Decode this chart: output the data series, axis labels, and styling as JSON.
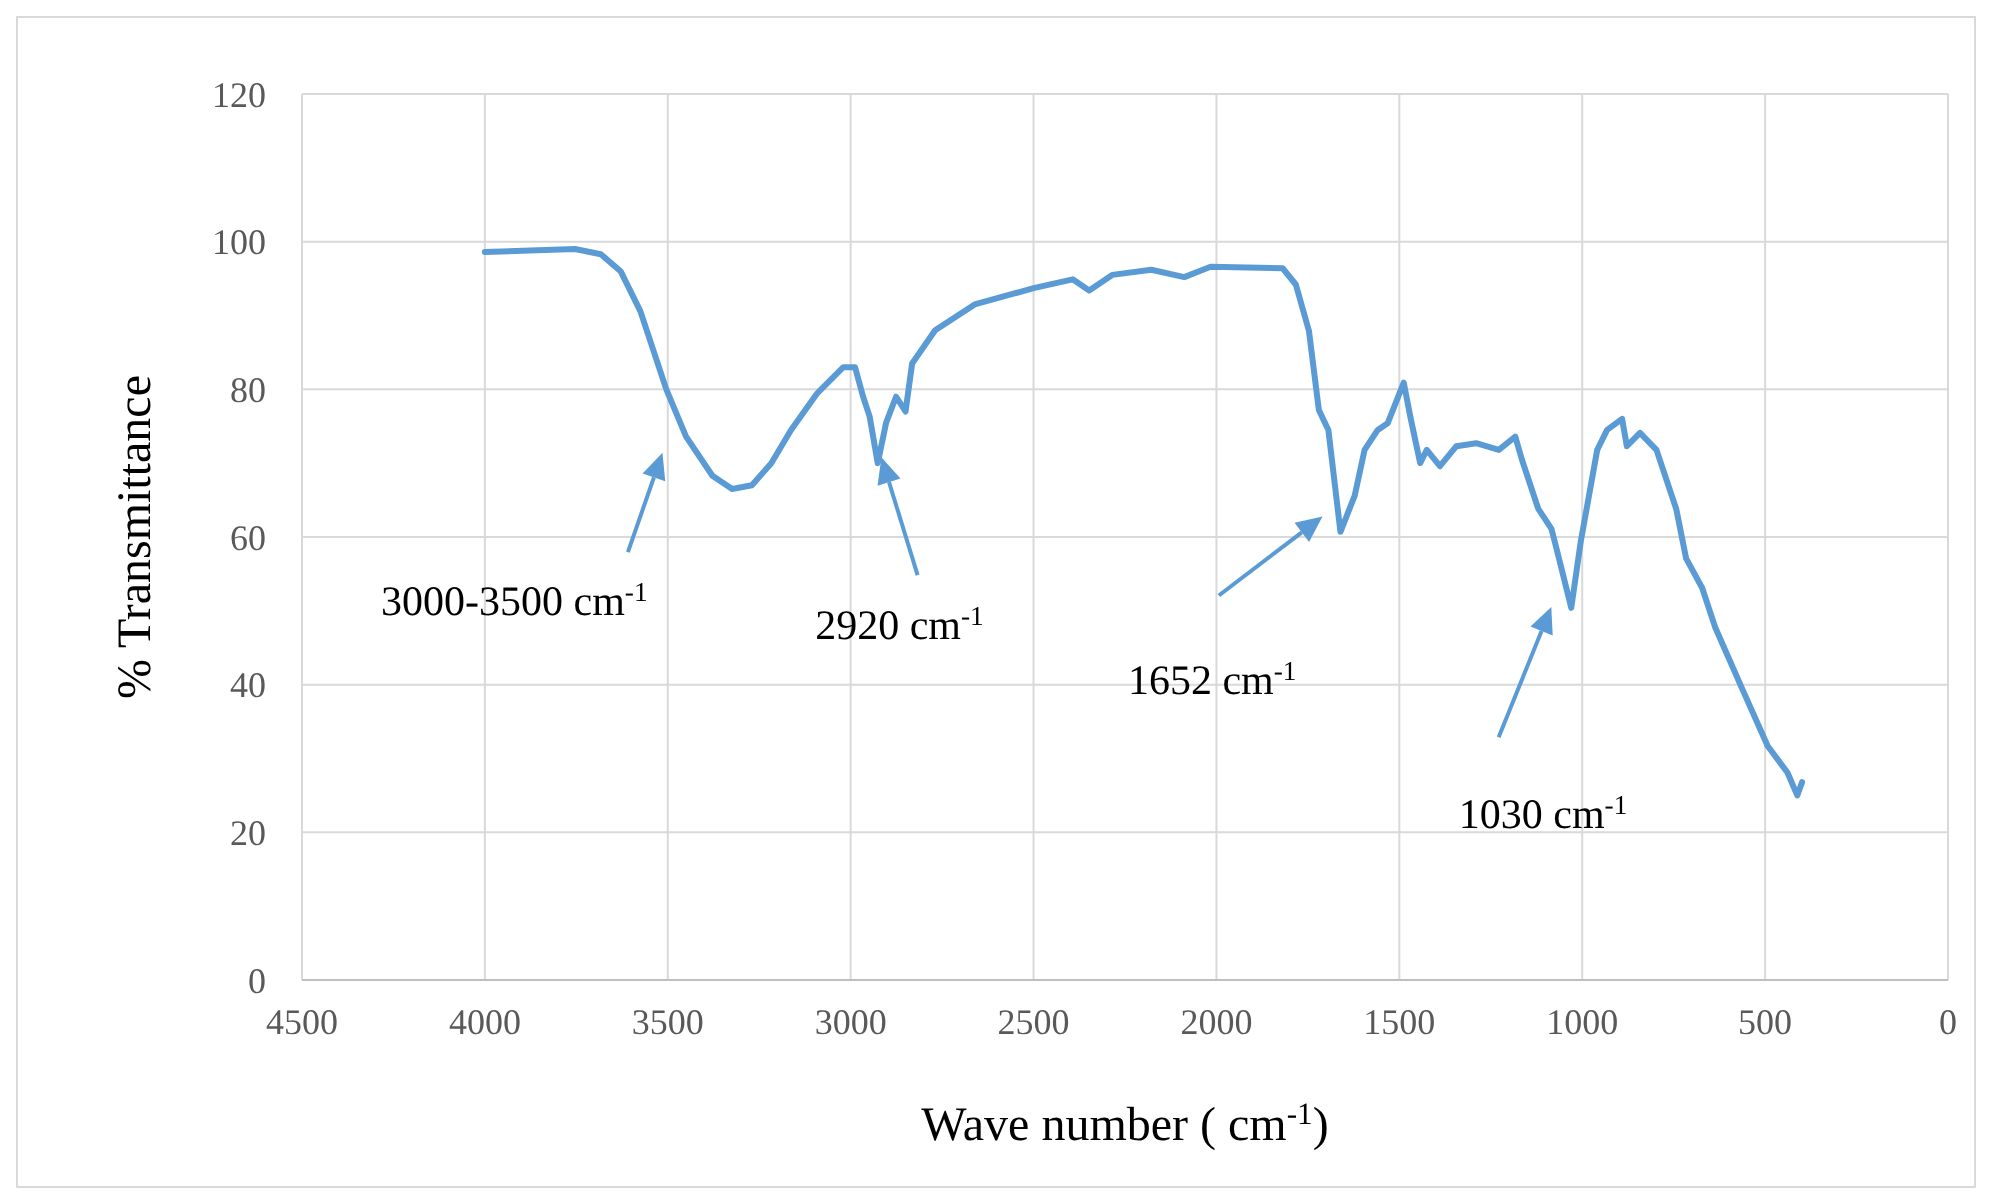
{
  "chart_data": {
    "type": "line",
    "xlabel": "Wave number ( cm$^{-1}$)",
    "ylabel": "% Transmittance",
    "x": [
      4000,
      3754,
      3683,
      3629,
      3575,
      3504,
      3450,
      3378,
      3324,
      3270,
      3217,
      3163,
      3091,
      3020,
      2988,
      2966,
      2948,
      2926,
      2903,
      2876,
      2850,
      2832,
      2769,
      2661,
      2500,
      2393,
      2348,
      2285,
      2178,
      2088,
      2016,
      1819,
      1783,
      1747,
      1720,
      1694,
      1661,
      1622,
      1595,
      1559,
      1532,
      1488,
      1470,
      1443,
      1425,
      1389,
      1344,
      1290,
      1228,
      1183,
      1165,
      1120,
      1084,
      1057,
      1030,
      1004,
      959,
      932,
      891,
      878,
      842,
      797,
      743,
      716,
      672,
      636,
      565,
      493,
      439,
      412,
      399
    ],
    "series": [
      {
        "color": "#5b9bd5",
        "values": [
          98.6,
          99,
          98.3,
          96,
          90.6,
          80,
          73.6,
          68.3,
          66.5,
          67,
          70,
          74.5,
          79.5,
          83,
          83,
          79,
          76.3,
          70,
          75.5,
          79,
          77,
          83.5,
          88,
          91.5,
          93.7,
          94.9,
          93.4,
          95.5,
          96.2,
          95.2,
          96.6,
          96.4,
          94.2,
          87.9,
          77.2,
          74.5,
          60.7,
          65.6,
          71.8,
          74.5,
          75.4,
          80.9,
          76.3,
          70,
          71.8,
          69.6,
          72.3,
          72.7,
          71.8,
          73.6,
          70.5,
          63.8,
          61.1,
          55.8,
          50.4,
          59.4,
          71.8,
          74.5,
          76,
          72.3,
          74.1,
          71.8,
          63.8,
          57.1,
          53.1,
          47.7,
          39.7,
          31.7,
          28.1,
          25,
          26.8
        ]
      }
    ],
    "xlim": [
      4500,
      0
    ],
    "xticks": [
      4500,
      4000,
      3500,
      3000,
      2500,
      2000,
      1500,
      1000,
      500,
      0
    ],
    "ylim": [
      0,
      120
    ],
    "yticks": [
      0,
      20,
      40,
      60,
      80,
      100,
      120
    ],
    "grid": true,
    "marker": "none",
    "line_style": "solid",
    "annotations": [
      "3000-3500 cm$^{-1}$",
      "2920 cm$^{-1}$",
      "1652 cm$^{-1}$",
      "1030 cm$^{-1}$"
    ]
  }
}
